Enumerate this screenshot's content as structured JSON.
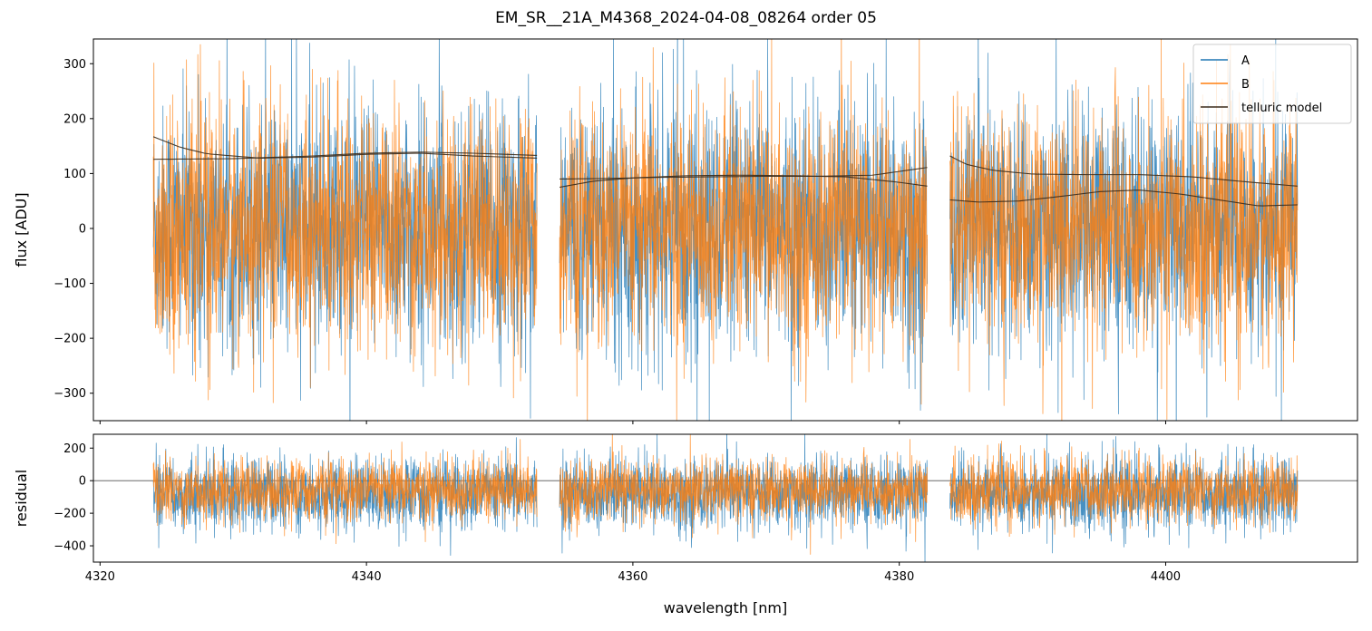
{
  "chart_data": [
    {
      "type": "line",
      "title": "EM_SR__21A_M4368_2024-04-08_08264  order 05",
      "ylabel": "flux [ADU]",
      "xlabel": "",
      "xlim": [
        4319.5,
        4414.4
      ],
      "ylim": [
        -350,
        345
      ],
      "yticks": [
        -300,
        -200,
        -100,
        0,
        100,
        200,
        300
      ],
      "ytick_labels": [
        "−300",
        "−200",
        "−100",
        "0",
        "100",
        "200",
        "300"
      ],
      "xticks": [
        4320,
        4340,
        4360,
        4380,
        4400
      ],
      "xtick_labels_shown": false,
      "grid": false,
      "legend": {
        "placement": "top-right",
        "entries": [
          "A",
          "B",
          "telluric model"
        ]
      },
      "chip_ranges_nm": [
        [
          4324.0,
          4352.8
        ],
        [
          4354.5,
          4382.1
        ],
        [
          4383.8,
          4409.9
        ]
      ],
      "series": [
        {
          "name": "A",
          "color": "#1f77b4",
          "noise_std_approx": 110,
          "range_approx": [
            -350,
            345
          ]
        },
        {
          "name": "B",
          "color": "#ff7f0e",
          "noise_std_approx": 105,
          "range_approx": [
            -350,
            345
          ]
        },
        {
          "name": "telluric model",
          "color": "#3a2a1a",
          "curves": [
            {
              "x": [
                4324.0,
                4326,
                4328,
                4332,
                4336,
                4340,
                4344,
                4348,
                4352.8
              ],
              "y": [
                167,
                148,
                136,
                128,
                130,
                135,
                137,
                132,
                128
              ]
            },
            {
              "x": [
                4324.0,
                4330,
                4336,
                4340,
                4344,
                4348,
                4352.8
              ],
              "y": [
                126,
                127,
                132,
                137,
                139,
                137,
                133
              ]
            },
            {
              "x": [
                4354.5,
                4358,
                4362,
                4366,
                4370,
                4374,
                4378,
                4382.1
              ],
              "y": [
                90,
                91,
                93,
                94,
                95,
                95,
                97,
                111
              ]
            },
            {
              "x": [
                4354.5,
                4357,
                4360,
                4364,
                4368,
                4372,
                4376,
                4380,
                4382.1
              ],
              "y": [
                75,
                86,
                92,
                96,
                97,
                96,
                94,
                84,
                77
              ]
            },
            {
              "x": [
                4383.8,
                4385,
                4387,
                4390,
                4394,
                4398,
                4402,
                4406,
                4409.9
              ],
              "y": [
                132,
                117,
                106,
                99,
                98,
                98,
                94,
                85,
                77
              ]
            },
            {
              "x": [
                4383.8,
                4386,
                4389,
                4392,
                4395,
                4398,
                4401,
                4404,
                4407,
                4409.9
              ],
              "y": [
                52,
                48,
                50,
                58,
                67,
                70,
                63,
                52,
                41,
                43
              ]
            }
          ]
        }
      ]
    },
    {
      "type": "line",
      "title": "",
      "ylabel": "residual",
      "xlabel": "wavelength [nm]",
      "xlim": [
        4319.5,
        4414.4
      ],
      "ylim": [
        -500,
        285
      ],
      "yticks": [
        -400,
        -200,
        0,
        200
      ],
      "ytick_labels": [
        "−400",
        "−200",
        "0",
        "200"
      ],
      "xticks": [
        4320,
        4340,
        4360,
        4380,
        4400
      ],
      "xtick_labels": [
        "4320",
        "4340",
        "4360",
        "4380",
        "4400"
      ],
      "grid": false,
      "reference_line": {
        "y": 0,
        "color": "#555555"
      },
      "chip_ranges_nm": [
        [
          4324.0,
          4352.8
        ],
        [
          4354.5,
          4382.1
        ],
        [
          4383.8,
          4409.9
        ]
      ],
      "series": [
        {
          "name": "A",
          "color": "#1f77b4",
          "mean_approx": -80,
          "noise_std_approx": 110
        },
        {
          "name": "B",
          "color": "#ff7f0e",
          "mean_approx": -60,
          "noise_std_approx": 95
        }
      ]
    }
  ]
}
